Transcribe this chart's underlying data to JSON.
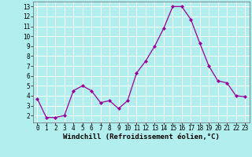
{
  "x": [
    0,
    1,
    2,
    3,
    4,
    5,
    6,
    7,
    8,
    9,
    10,
    11,
    12,
    13,
    14,
    15,
    16,
    17,
    18,
    19,
    20,
    21,
    22,
    23
  ],
  "y": [
    3.7,
    1.8,
    1.8,
    2.0,
    4.5,
    5.0,
    4.5,
    3.3,
    3.5,
    2.7,
    3.5,
    6.3,
    7.5,
    9.0,
    10.8,
    13.0,
    13.0,
    11.7,
    9.3,
    7.0,
    5.5,
    5.3,
    4.0,
    3.9
  ],
  "line_color": "#990099",
  "marker": "D",
  "marker_size": 2.0,
  "bg_color": "#b2eeee",
  "grid_color": "#ffffff",
  "xlabel": "Windchill (Refroidissement éolien,°C)",
  "xlabel_fontsize": 6.5,
  "tick_fontsize": 5.5,
  "xlim": [
    -0.5,
    23.5
  ],
  "ylim": [
    1.3,
    13.5
  ],
  "yticks": [
    2,
    3,
    4,
    5,
    6,
    7,
    8,
    9,
    10,
    11,
    12,
    13
  ],
  "xticks": [
    0,
    1,
    2,
    3,
    4,
    5,
    6,
    7,
    8,
    9,
    10,
    11,
    12,
    13,
    14,
    15,
    16,
    17,
    18,
    19,
    20,
    21,
    22,
    23
  ]
}
